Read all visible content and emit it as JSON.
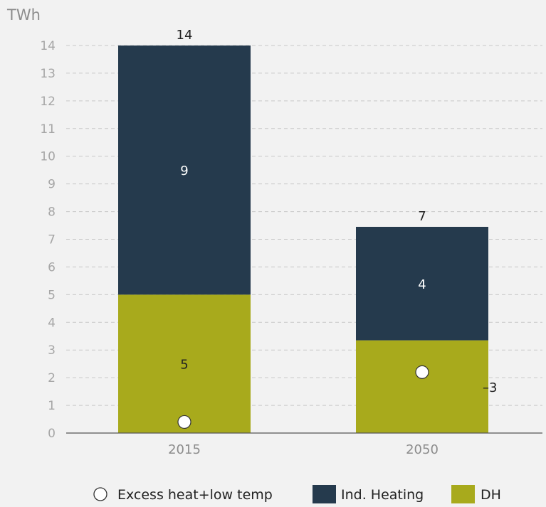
{
  "chart_data": {
    "type": "bar",
    "stacked": true,
    "unit_label": "TWh",
    "categories": [
      "2015",
      "2050"
    ],
    "ylim": [
      0,
      14
    ],
    "yticks": [
      0,
      1,
      2,
      3,
      4,
      5,
      6,
      7,
      8,
      9,
      10,
      11,
      12,
      13,
      14
    ],
    "grid": true,
    "series": [
      {
        "name": "DH",
        "values": [
          5,
          3.35
        ],
        "labels": [
          "5",
          ""
        ],
        "color": "#a8aa1c"
      },
      {
        "name": "Ind. Heating",
        "values": [
          9,
          4.1
        ],
        "labels": [
          "9",
          "4"
        ],
        "color": "#253a4d"
      }
    ],
    "totals": [
      "14",
      "7"
    ],
    "markers": {
      "name": "Excess heat+low temp",
      "values": [
        0.4,
        2.2
      ]
    },
    "annotations": [
      {
        "category": "2050",
        "text": "3",
        "y": 1.65
      }
    ],
    "legend": {
      "placement": "bottom",
      "items": [
        "Excess heat+low temp",
        "Ind. Heating",
        "DH"
      ]
    }
  }
}
